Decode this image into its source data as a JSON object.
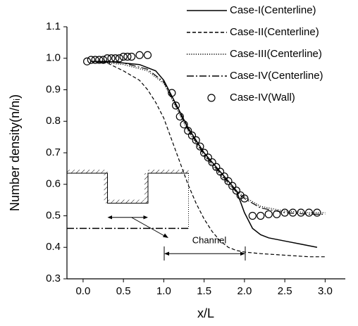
{
  "chart_data": {
    "type": "line",
    "xlabel": "x/L",
    "ylabel": "Number density(n/nᵢ)",
    "annotations": [
      "Channel"
    ],
    "xlim": [
      -0.2,
      3.25
    ],
    "ylim": [
      0.3,
      1.1
    ],
    "xticks": [
      {
        "value": 0,
        "label": "0.0"
      },
      0.5,
      {
        "value": 1,
        "label": "1.0"
      },
      1.5,
      {
        "value": 2,
        "label": "2.0"
      },
      2.5,
      {
        "value": 3,
        "label": "3.0"
      }
    ],
    "yticks": [
      0.3,
      0.4,
      0.5,
      0.6,
      0.7,
      0.8,
      0.9,
      {
        "value": 1,
        "label": "1.0"
      },
      1.1
    ],
    "legend": "upper right",
    "series": [
      {
        "name": "Case-I(Centerline)",
        "color": "#000000",
        "dash": "solid",
        "x": [
          0.1,
          0.3,
          0.5,
          0.7,
          0.9,
          1.0,
          1.1,
          1.2,
          1.3,
          1.4,
          1.5,
          1.6,
          1.7,
          1.8,
          1.9,
          2.0,
          2.1,
          2.2,
          2.3,
          2.5,
          2.7,
          2.9
        ],
        "values": [
          0.99,
          0.99,
          0.985,
          0.98,
          0.96,
          0.93,
          0.88,
          0.83,
          0.78,
          0.74,
          0.7,
          0.67,
          0.64,
          0.61,
          0.58,
          0.51,
          0.46,
          0.44,
          0.43,
          0.42,
          0.41,
          0.4
        ]
      },
      {
        "name": "Case-II(Centerline)",
        "color": "#000000",
        "dash": "dashed",
        "x": [
          0.1,
          0.3,
          0.5,
          0.7,
          0.8,
          0.9,
          1.0,
          1.1,
          1.2,
          1.3,
          1.4,
          1.5,
          1.6,
          1.7,
          1.8,
          1.9,
          2.0,
          2.2,
          2.5,
          2.8,
          3.0
        ],
        "values": [
          0.99,
          0.985,
          0.96,
          0.93,
          0.9,
          0.86,
          0.81,
          0.74,
          0.67,
          0.6,
          0.54,
          0.49,
          0.45,
          0.42,
          0.4,
          0.39,
          0.385,
          0.38,
          0.375,
          0.37,
          0.37
        ]
      },
      {
        "name": "Case-III(Centerline)",
        "color": "#000000",
        "dash": "dotted",
        "x": [
          0.1,
          0.5,
          0.8,
          1.0,
          1.1,
          1.2,
          1.3,
          1.4,
          1.5,
          1.6,
          1.7,
          1.8,
          1.9,
          2.0,
          2.2,
          2.5,
          2.8,
          3.0
        ],
        "values": [
          0.99,
          0.98,
          0.96,
          0.92,
          0.87,
          0.82,
          0.77,
          0.73,
          0.69,
          0.66,
          0.63,
          0.6,
          0.58,
          0.56,
          0.53,
          0.515,
          0.51,
          0.51
        ]
      },
      {
        "name": "Case-IV(Centerline)",
        "color": "#000000",
        "dash": "dashdot",
        "x": [
          0.1,
          0.5,
          0.8,
          1.0,
          1.1,
          1.2,
          1.3,
          1.4,
          1.5,
          1.6,
          1.7,
          1.8,
          1.9,
          2.0,
          2.2,
          2.5,
          2.8,
          3.0
        ],
        "values": [
          0.99,
          0.985,
          0.965,
          0.925,
          0.875,
          0.825,
          0.775,
          0.735,
          0.695,
          0.665,
          0.635,
          0.605,
          0.575,
          0.555,
          0.525,
          0.51,
          0.505,
          0.505
        ]
      },
      {
        "name": "Case-IV(Wall)",
        "color": "#000000",
        "marker": "circle",
        "x": [
          0.05,
          0.1,
          0.15,
          0.2,
          0.25,
          0.3,
          0.35,
          0.4,
          0.45,
          0.5,
          0.55,
          0.6,
          0.7,
          0.8,
          1.1,
          1.15,
          1.2,
          1.25,
          1.3,
          1.35,
          1.4,
          1.45,
          1.5,
          1.55,
          1.6,
          1.65,
          1.7,
          1.75,
          1.8,
          1.85,
          1.9,
          1.95,
          2.0,
          2.1,
          2.2,
          2.3,
          2.4,
          2.5,
          2.6,
          2.7,
          2.8,
          2.9
        ],
        "values": [
          0.99,
          0.995,
          0.995,
          0.995,
          0.995,
          1.0,
          1.0,
          1.0,
          1.0,
          1.005,
          1.005,
          1.005,
          1.01,
          1.01,
          0.89,
          0.85,
          0.815,
          0.79,
          0.77,
          0.755,
          0.74,
          0.72,
          0.7,
          0.685,
          0.67,
          0.655,
          0.64,
          0.625,
          0.61,
          0.595,
          0.58,
          0.565,
          0.555,
          0.5,
          0.5,
          0.505,
          0.505,
          0.51,
          0.51,
          0.51,
          0.51,
          0.51
        ]
      }
    ]
  }
}
